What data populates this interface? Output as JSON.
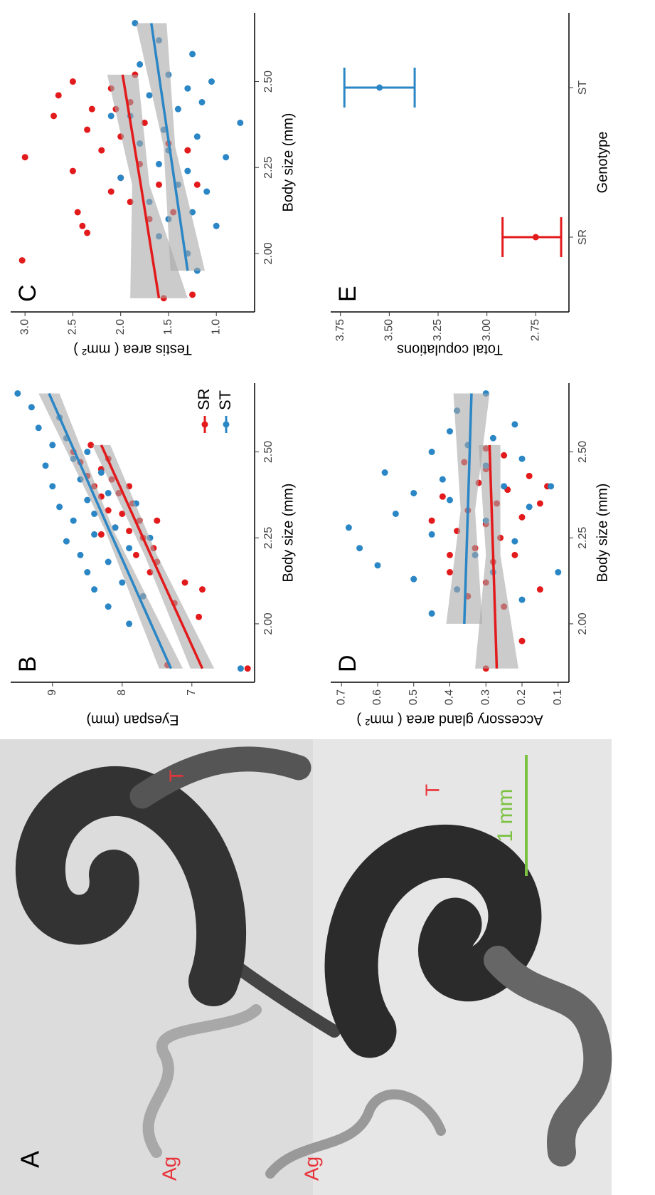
{
  "photo": {
    "panel_label": "A",
    "labels": [
      "T",
      "Ag",
      "Ag",
      "T"
    ],
    "scale_label": "1 mm"
  },
  "chart_data": [
    {
      "type": "scatter",
      "panel_label": "B",
      "x_label": "Body size (mm)",
      "y_label": "Eyespan (mm)",
      "xlim": [
        1.83,
        2.7
      ],
      "xticks": [
        {
          "value": 2,
          "label": "2.00"
        },
        2.25,
        {
          "value": 2.5,
          "label": "2.50"
        }
      ],
      "ylim": [
        6.1,
        9.6
      ],
      "yticks": [
        7,
        8,
        9
      ],
      "legend": true,
      "series": [
        {
          "name": "SR",
          "color": "#e31a1c",
          "x": [
            1.87,
            1.88,
            2.02,
            2.06,
            2.1,
            2.12,
            2.15,
            2.18,
            2.2,
            2.22,
            2.25,
            2.27,
            2.28,
            2.3,
            2.32,
            2.33,
            2.35,
            2.37,
            2.38,
            2.4,
            2.42,
            2.43,
            2.45,
            2.47,
            2.48,
            2.5,
            2.52,
            2.3,
            2.26,
            2.4
          ],
          "values": [
            6.2,
            7.35,
            6.9,
            7.25,
            6.85,
            7.1,
            7.6,
            7.5,
            7.8,
            7.55,
            7.7,
            7.9,
            8.1,
            7.75,
            8.0,
            8.2,
            7.85,
            8.3,
            8.05,
            8.4,
            8.15,
            8.5,
            8.3,
            8.6,
            8.2,
            8.7,
            8.45,
            7.5,
            8.3,
            7.9
          ],
          "fit": {
            "x": [
              1.87,
              2.2,
              2.52
            ],
            "values": [
              6.85,
              7.59,
              8.3
            ],
            "lower": [
              6.68,
              7.5,
              8.17
            ],
            "upper": [
              7.02,
              7.68,
              8.43
            ]
          }
        },
        {
          "name": "ST",
          "color": "#2b86c5",
          "x": [
            1.87,
            2.0,
            2.05,
            2.08,
            2.1,
            2.12,
            2.15,
            2.18,
            2.2,
            2.22,
            2.24,
            2.26,
            2.28,
            2.3,
            2.32,
            2.34,
            2.36,
            2.38,
            2.4,
            2.42,
            2.44,
            2.46,
            2.48,
            2.5,
            2.52,
            2.54,
            2.57,
            2.6,
            2.63,
            2.67,
            2.25,
            2.35
          ],
          "values": [
            6.3,
            7.9,
            8.2,
            7.7,
            8.4,
            8.0,
            8.5,
            8.2,
            8.6,
            7.9,
            8.8,
            8.4,
            8.1,
            8.7,
            8.4,
            8.9,
            8.5,
            8.2,
            9.0,
            8.6,
            8.3,
            9.1,
            8.7,
            8.5,
            9.0,
            8.8,
            9.2,
            8.9,
            9.3,
            9.5,
            7.6,
            7.8
          ],
          "fit": {
            "x": [
              1.87,
              2.27,
              2.67
            ],
            "values": [
              7.3,
              8.18,
              9.05
            ],
            "lower": [
              7.13,
              8.12,
              8.9
            ],
            "upper": [
              7.47,
              8.24,
              9.2
            ]
          }
        }
      ]
    },
    {
      "type": "scatter",
      "panel_label": "C",
      "x_label": "Body size (mm)",
      "y_label": "Testis area ( mm² )",
      "xlim": [
        1.83,
        2.7
      ],
      "xticks": [
        {
          "value": 2,
          "label": "2.00"
        },
        2.25,
        {
          "value": 2.5,
          "label": "2.50"
        }
      ],
      "ylim": [
        0.6,
        3.15
      ],
      "yticks": [
        {
          "value": 1,
          "label": "1.0"
        },
        1.5,
        {
          "value": 2,
          "label": "2.0"
        },
        2.5,
        {
          "value": 3,
          "label": "3.0"
        }
      ],
      "legend": false,
      "series": [
        {
          "color": "#e31a1c",
          "x": [
            1.87,
            1.88,
            1.98,
            2.06,
            2.08,
            2.1,
            2.12,
            2.15,
            2.18,
            2.2,
            2.22,
            2.24,
            2.26,
            2.28,
            2.3,
            2.32,
            2.34,
            2.36,
            2.38,
            2.4,
            2.42,
            2.44,
            2.46,
            2.48,
            2.5,
            2.52,
            2.3,
            2.2,
            2.12,
            2.42
          ],
          "values": [
            1.55,
            1.25,
            3.03,
            2.35,
            2.4,
            1.7,
            2.45,
            1.9,
            2.1,
            1.6,
            2.0,
            2.5,
            1.8,
            3.0,
            2.2,
            1.5,
            2.0,
            2.35,
            1.75,
            2.7,
            2.3,
            1.9,
            2.65,
            2.1,
            2.5,
            1.85,
            1.3,
            1.2,
            1.45,
            2.05
          ],
          "fit": {
            "x": [
              1.87,
              2.2,
              2.52
            ],
            "values": [
              1.6,
              1.79,
              1.98
            ],
            "lower": [
              1.3,
              1.7,
              1.82
            ],
            "upper": [
              1.9,
              1.88,
              2.14
            ]
          }
        },
        {
          "color": "#2b86c5",
          "x": [
            1.95,
            2.0,
            2.05,
            2.08,
            2.1,
            2.12,
            2.15,
            2.18,
            2.2,
            2.22,
            2.24,
            2.26,
            2.28,
            2.3,
            2.32,
            2.34,
            2.36,
            2.38,
            2.4,
            2.42,
            2.44,
            2.46,
            2.48,
            2.5,
            2.52,
            2.55,
            2.58,
            2.62,
            2.67,
            2.4
          ],
          "values": [
            1.2,
            1.3,
            1.6,
            1.0,
            1.5,
            1.25,
            1.7,
            1.1,
            1.4,
            2.0,
            1.3,
            1.6,
            0.9,
            1.5,
            1.8,
            1.2,
            1.55,
            0.75,
            1.9,
            1.4,
            1.15,
            1.7,
            1.3,
            1.05,
            1.5,
            1.8,
            1.25,
            1.6,
            1.85,
            2.1
          ],
          "fit": {
            "x": [
              1.95,
              2.31,
              2.67
            ],
            "values": [
              1.3,
              1.49,
              1.68
            ],
            "lower": [
              1.12,
              1.43,
              1.52
            ],
            "upper": [
              1.48,
              1.55,
              1.84
            ]
          }
        }
      ]
    },
    {
      "type": "scatter",
      "panel_label": "D",
      "x_label": "Body size (mm)",
      "y_label": "Accessory gland area ( mm² )",
      "xlim": [
        1.83,
        2.7
      ],
      "xticks": [
        {
          "value": 2,
          "label": "2.00"
        },
        2.25,
        {
          "value": 2.5,
          "label": "2.50"
        }
      ],
      "ylim": [
        0.07,
        0.73
      ],
      "yticks": [
        0.1,
        0.2,
        0.3,
        0.4,
        0.5,
        0.6,
        0.7
      ],
      "legend": false,
      "series": [
        {
          "color": "#e31a1c",
          "x": [
            1.87,
            1.95,
            2.05,
            2.08,
            2.1,
            2.12,
            2.15,
            2.18,
            2.2,
            2.22,
            2.25,
            2.27,
            2.29,
            2.31,
            2.33,
            2.35,
            2.37,
            2.39,
            2.41,
            2.43,
            2.45,
            2.47,
            2.49,
            2.51,
            2.3,
            2.4,
            2.2,
            2.35
          ],
          "values": [
            0.3,
            0.2,
            0.25,
            0.35,
            0.15,
            0.3,
            0.4,
            0.28,
            0.22,
            0.33,
            0.26,
            0.38,
            0.3,
            0.2,
            0.35,
            0.27,
            0.42,
            0.24,
            0.32,
            0.18,
            0.3,
            0.36,
            0.25,
            0.3,
            0.45,
            0.13,
            0.4,
            0.15
          ],
          "fit": {
            "x": [
              1.87,
              2.2,
              2.52
            ],
            "values": [
              0.27,
              0.28,
              0.29
            ],
            "lower": [
              0.21,
              0.26,
              0.26
            ],
            "upper": [
              0.33,
              0.3,
              0.32
            ]
          }
        },
        {
          "color": "#2b86c5",
          "x": [
            2.03,
            2.07,
            2.1,
            2.13,
            2.15,
            2.17,
            2.2,
            2.22,
            2.24,
            2.26,
            2.28,
            2.3,
            2.32,
            2.34,
            2.36,
            2.38,
            2.4,
            2.42,
            2.44,
            2.46,
            2.48,
            2.5,
            2.52,
            2.54,
            2.56,
            2.58,
            2.62,
            2.67,
            2.15,
            2.4
          ],
          "values": [
            0.45,
            0.2,
            0.38,
            0.5,
            0.28,
            0.6,
            0.33,
            0.65,
            0.22,
            0.45,
            0.68,
            0.3,
            0.55,
            0.18,
            0.4,
            0.5,
            0.25,
            0.42,
            0.58,
            0.3,
            0.2,
            0.45,
            0.35,
            0.28,
            0.4,
            0.22,
            0.38,
            0.3,
            0.1,
            0.12
          ],
          "fit": {
            "x": [
              2.0,
              2.33,
              2.67
            ],
            "values": [
              0.36,
              0.35,
              0.34
            ],
            "lower": [
              0.31,
              0.33,
              0.29
            ],
            "upper": [
              0.41,
              0.37,
              0.39
            ]
          }
        }
      ]
    },
    {
      "type": "errorbar",
      "panel_label": "E",
      "x_label": "Genotype",
      "y_label": "Total copulations",
      "categories": [
        "SR",
        "ST"
      ],
      "colors": [
        "#e31a1c",
        "#2b86c5"
      ],
      "values": [
        2.75,
        3.55
      ],
      "lower": [
        2.62,
        3.37
      ],
      "upper": [
        2.92,
        3.73
      ],
      "ylim": [
        2.58,
        3.8
      ],
      "yticks": [
        2.75,
        {
          "value": 3,
          "label": "3.00"
        },
        3.25,
        {
          "value": 3.5,
          "label": "3.50"
        },
        3.75
      ]
    }
  ]
}
